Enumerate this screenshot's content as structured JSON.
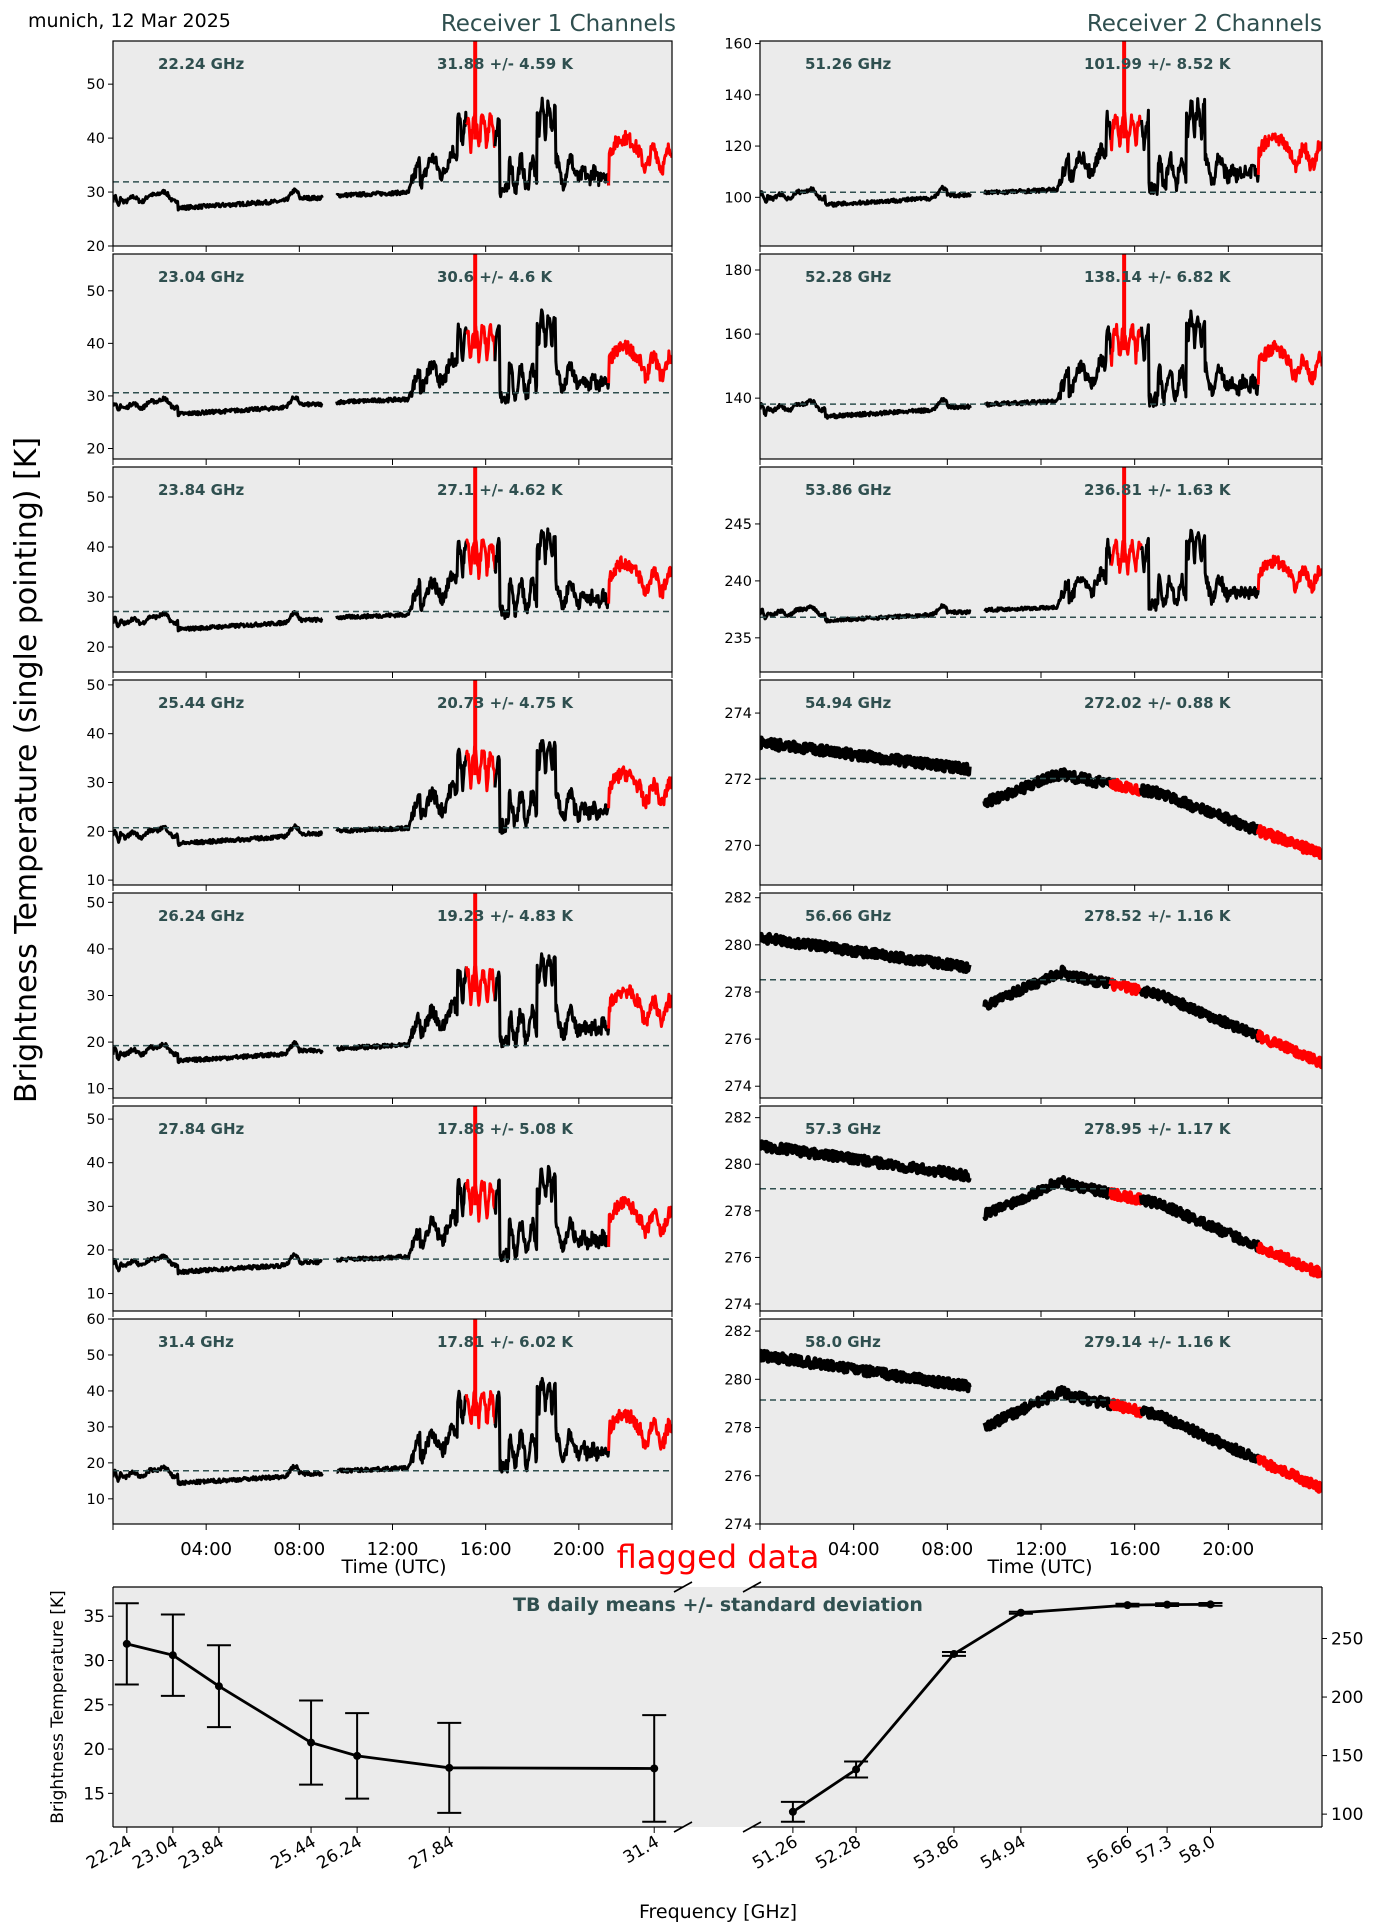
{
  "header": {
    "location_date": "munich, 12 Mar 2025",
    "receiver1_title": "Receiver 1 Channels",
    "receiver2_title": "Receiver 2 Channels"
  },
  "shared_ylabel": "Brightness Temperature (single pointing) [K]",
  "flagged_label": "flagged data",
  "colors": {
    "axes_bg": "#ebebeb",
    "annotation": "#2f4f4f",
    "data": "#000000",
    "flagged": "#ff0000",
    "mean_line": "#2f4f4f"
  },
  "chart_data": [
    {
      "type": "line",
      "title": "Receiver 1 Channels",
      "xlabel": "Time (UTC)",
      "ylabel": "Brightness Temperature (single pointing) [K]",
      "x_range_hours": [
        0,
        24
      ],
      "x_ticks": [
        "04:00",
        "08:00",
        "12:00",
        "16:00",
        "20:00"
      ],
      "flagged_intervals_hours": [
        [
          15.2,
          16.4
        ],
        [
          21.3,
          24.0
        ]
      ],
      "grid": false,
      "panels": [
        {
          "freq_label": "22.24 GHz",
          "stats_label": "31.88 +/- 4.59 K",
          "mean": 31.88,
          "std": 4.59,
          "ylim": [
            20,
            58
          ],
          "yticks": [
            20,
            30,
            40,
            50
          ],
          "base": 27.5,
          "night_min": 26.5,
          "peak": 52
        },
        {
          "freq_label": "23.04 GHz",
          "stats_label": "30.6 +/- 4.6 K",
          "mean": 30.6,
          "std": 4.6,
          "ylim": [
            18,
            57
          ],
          "yticks": [
            20,
            30,
            40,
            50
          ],
          "base": 27.0,
          "night_min": 25.3,
          "peak": 51
        },
        {
          "freq_label": "23.84 GHz",
          "stats_label": "27.1 +/- 4.62 K",
          "mean": 27.1,
          "std": 4.62,
          "ylim": [
            15,
            56
          ],
          "yticks": [
            20,
            30,
            40,
            50
          ],
          "base": 24.0,
          "night_min": 22.3,
          "peak": 49
        },
        {
          "freq_label": "25.44 GHz",
          "stats_label": "20.73 +/- 4.75 K",
          "mean": 20.73,
          "std": 4.75,
          "ylim": [
            9,
            51
          ],
          "yticks": [
            10,
            20,
            30,
            40,
            50
          ],
          "base": 18.0,
          "night_min": 16.3,
          "peak": 45
        },
        {
          "freq_label": "26.24 GHz",
          "stats_label": "19.23 +/- 4.83 K",
          "mean": 19.23,
          "std": 4.83,
          "ylim": [
            8,
            52
          ],
          "yticks": [
            10,
            20,
            30,
            40,
            50
          ],
          "base": 16.5,
          "night_min": 15.0,
          "peak": 45
        },
        {
          "freq_label": "27.84 GHz",
          "stats_label": "17.88 +/- 5.08 K",
          "mean": 17.88,
          "std": 5.08,
          "ylim": [
            6,
            53
          ],
          "yticks": [
            10,
            20,
            30,
            40,
            50
          ],
          "base": 15.5,
          "night_min": 13.7,
          "peak": 45
        },
        {
          "freq_label": "31.4 GHz",
          "stats_label": "17.81 +/- 6.02 K",
          "mean": 17.81,
          "std": 6.02,
          "ylim": [
            3,
            60
          ],
          "yticks": [
            10,
            20,
            30,
            40,
            50,
            60
          ],
          "base": 15.0,
          "night_min": 13.0,
          "peak": 51
        }
      ]
    },
    {
      "type": "line",
      "title": "Receiver 2 Channels",
      "xlabel": "Time (UTC)",
      "ylabel": "Brightness Temperature (single pointing) [K]",
      "x_range_hours": [
        0,
        24
      ],
      "x_ticks": [
        "04:00",
        "08:00",
        "12:00",
        "16:00",
        "20:00"
      ],
      "flagged_intervals_hours": [
        [
          15.0,
          16.3
        ],
        [
          21.3,
          24.0
        ]
      ],
      "grid": false,
      "panels": [
        {
          "freq_label": "51.26 GHz",
          "stats_label": "101.99 +/- 8.52 K",
          "mean": 101.99,
          "std": 8.52,
          "ylim": [
            81,
            161
          ],
          "yticks": [
            100,
            120,
            140,
            160
          ],
          "kind": "humid",
          "base": 98,
          "night_min": 95.5,
          "peak": 148
        },
        {
          "freq_label": "52.28 GHz",
          "stats_label": "138.14 +/- 6.82 K",
          "mean": 138.14,
          "std": 6.82,
          "ylim": [
            121,
            185
          ],
          "yticks": [
            140,
            160,
            180
          ],
          "kind": "humid",
          "base": 135,
          "night_min": 133,
          "peak": 175
        },
        {
          "freq_label": "53.86 GHz",
          "stats_label": "236.81 +/- 1.63 K",
          "mean": 236.81,
          "std": 1.63,
          "ylim": [
            232,
            250
          ],
          "yticks": [
            235,
            240,
            245
          ],
          "kind": "humid",
          "base": 236.7,
          "night_min": 236.0,
          "peak": 246.5
        },
        {
          "freq_label": "54.94 GHz",
          "stats_label": "272.02 +/- 0.88 K",
          "mean": 272.02,
          "std": 0.88,
          "ylim": [
            268.8,
            275.0
          ],
          "yticks": [
            270,
            272,
            274
          ],
          "kind": "opaque",
          "start": 273.1,
          "end": 269.8
        },
        {
          "freq_label": "56.66 GHz",
          "stats_label": "278.52 +/- 1.16 K",
          "mean": 278.52,
          "std": 1.16,
          "ylim": [
            273.5,
            282.2
          ],
          "yticks": [
            274,
            276,
            278,
            280,
            282
          ],
          "kind": "opaque",
          "start": 280.3,
          "end": 275.1
        },
        {
          "freq_label": "57.3 GHz",
          "stats_label": "278.95 +/- 1.17 K",
          "mean": 278.95,
          "std": 1.17,
          "ylim": [
            273.7,
            282.5
          ],
          "yticks": [
            274,
            276,
            278,
            280,
            282
          ],
          "kind": "opaque",
          "start": 280.8,
          "end": 275.4
        },
        {
          "freq_label": "58.0 GHz",
          "stats_label": "279.14 +/- 1.16 K",
          "mean": 279.14,
          "std": 1.16,
          "ylim": [
            274.0,
            282.5
          ],
          "yticks": [
            274,
            276,
            278,
            280,
            282
          ],
          "kind": "opaque",
          "start": 281.0,
          "end": 275.6
        }
      ]
    },
    {
      "type": "line",
      "title": "TB daily means +/- standard deviation",
      "xlabel": "Frequency [GHz]",
      "ylabel": "Brightness Temperature [K]",
      "broken_x_axis": true,
      "left_segment": {
        "x": [
          22.24,
          23.04,
          23.84,
          25.44,
          26.24,
          27.84,
          31.4
        ],
        "tick_labels": [
          "22.24",
          "23.04",
          "23.84",
          "25.44",
          "26.24",
          "27.84",
          "31.4"
        ],
        "y": [
          31.88,
          30.6,
          27.1,
          20.73,
          19.23,
          17.88,
          17.81
        ],
        "yerr": [
          4.59,
          4.6,
          4.62,
          4.75,
          4.83,
          5.08,
          6.02
        ],
        "xlim": [
          22.0,
          31.9
        ],
        "ylim": [
          11.2,
          38.3
        ],
        "yticks": [
          15,
          20,
          25,
          30,
          35
        ],
        "y_axis_side": "left"
      },
      "right_segment": {
        "x": [
          51.26,
          52.28,
          53.86,
          54.94,
          56.66,
          57.3,
          58.0
        ],
        "tick_labels": [
          "51.26",
          "52.28",
          "53.86",
          "54.94",
          "56.66",
          "57.3",
          "58.0"
        ],
        "y": [
          101.99,
          138.14,
          236.81,
          272.02,
          278.52,
          278.95,
          279.14
        ],
        "yerr": [
          8.52,
          6.82,
          1.63,
          0.88,
          1.16,
          1.17,
          1.16
        ],
        "xlim": [
          50.6,
          59.8
        ],
        "ylim": [
          89,
          294
        ],
        "yticks": [
          100,
          150,
          200,
          250
        ],
        "y_axis_side": "right"
      },
      "grid": false
    }
  ]
}
